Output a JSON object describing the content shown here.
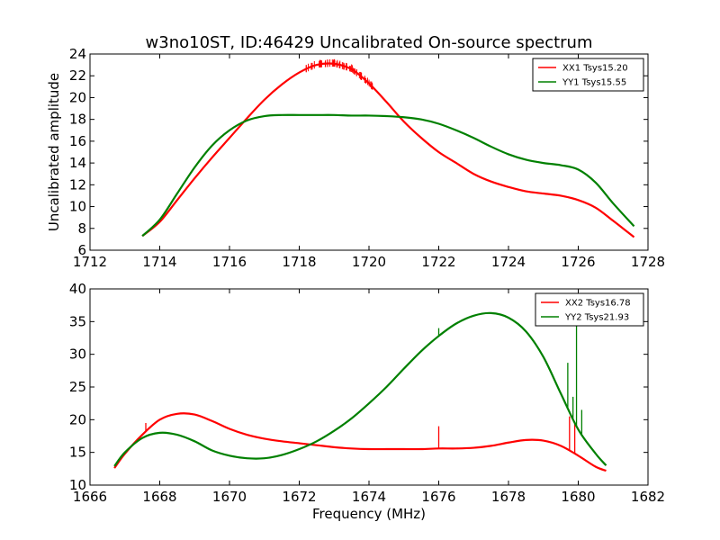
{
  "title": "w3no10ST, ID:46429 Uncalibrated On-source spectrum",
  "chart_data": [
    {
      "type": "line",
      "title": "w3no10ST, ID:46429 Uncalibrated On-source spectrum",
      "xlabel": "",
      "ylabel": "Uncalibrated amplitude",
      "xlim": [
        1712,
        1728
      ],
      "ylim": [
        6,
        24
      ],
      "xticks": [
        "1712",
        "1714",
        "1716",
        "1718",
        "1720",
        "1722",
        "1724",
        "1726",
        "1728"
      ],
      "yticks": [
        "6",
        "8",
        "10",
        "12",
        "14",
        "16",
        "18",
        "20",
        "22",
        "24"
      ],
      "legend_position": "top-right",
      "series": [
        {
          "name": "XX1 Tsys15.20",
          "color": "#ff0000",
          "x": [
            1713.5,
            1714.0,
            1714.5,
            1715.0,
            1715.5,
            1716.0,
            1716.5,
            1717.0,
            1717.5,
            1718.0,
            1718.5,
            1719.0,
            1719.5,
            1720.0,
            1720.5,
            1721.0,
            1721.5,
            1722.0,
            1722.5,
            1723.0,
            1723.5,
            1724.0,
            1724.5,
            1725.0,
            1725.5,
            1726.0,
            1726.5,
            1727.0,
            1727.6
          ],
          "values": [
            7.3,
            8.6,
            10.6,
            12.6,
            14.5,
            16.3,
            18.1,
            19.8,
            21.2,
            22.3,
            23.0,
            23.1,
            22.6,
            21.3,
            19.6,
            17.8,
            16.3,
            15.0,
            14.0,
            13.0,
            12.3,
            11.8,
            11.4,
            11.2,
            11.0,
            10.6,
            9.9,
            8.7,
            7.2
          ]
        },
        {
          "name": "YY1 Tsys15.55",
          "color": "#008000",
          "x": [
            1713.5,
            1714.0,
            1714.5,
            1715.0,
            1715.5,
            1716.0,
            1716.5,
            1717.0,
            1717.5,
            1718.0,
            1718.5,
            1719.0,
            1719.5,
            1720.0,
            1720.5,
            1721.0,
            1721.5,
            1722.0,
            1722.5,
            1723.0,
            1723.5,
            1724.0,
            1724.5,
            1725.0,
            1725.5,
            1726.0,
            1726.5,
            1727.0,
            1727.6
          ],
          "values": [
            7.3,
            8.8,
            11.2,
            13.6,
            15.6,
            17.0,
            17.9,
            18.3,
            18.4,
            18.4,
            18.4,
            18.4,
            18.35,
            18.35,
            18.3,
            18.2,
            18.0,
            17.6,
            17.0,
            16.3,
            15.5,
            14.8,
            14.3,
            14.0,
            13.8,
            13.4,
            12.2,
            10.3,
            8.2
          ]
        }
      ]
    },
    {
      "type": "line",
      "title": "",
      "xlabel": "Frequency (MHz)",
      "ylabel": "",
      "xlim": [
        1666,
        1682
      ],
      "ylim": [
        10,
        40
      ],
      "xticks": [
        "1666",
        "1668",
        "1670",
        "1672",
        "1674",
        "1676",
        "1678",
        "1680",
        "1682"
      ],
      "yticks": [
        "10",
        "15",
        "20",
        "25",
        "30",
        "35",
        "40"
      ],
      "legend_position": "top-right",
      "series": [
        {
          "name": "XX2 Tsys16.78",
          "color": "#ff0000",
          "x": [
            1666.7,
            1667.0,
            1667.5,
            1668.0,
            1668.5,
            1669.0,
            1669.5,
            1670.0,
            1670.5,
            1671.0,
            1671.5,
            1672.0,
            1672.5,
            1673.0,
            1673.5,
            1674.0,
            1674.5,
            1675.0,
            1675.5,
            1676.0,
            1676.5,
            1677.0,
            1677.5,
            1678.0,
            1678.5,
            1679.0,
            1679.5,
            1680.0,
            1680.5,
            1680.8
          ],
          "values": [
            12.6,
            14.8,
            17.7,
            20.0,
            20.9,
            20.8,
            19.8,
            18.6,
            17.7,
            17.1,
            16.7,
            16.4,
            16.1,
            15.8,
            15.6,
            15.5,
            15.5,
            15.5,
            15.5,
            15.6,
            15.6,
            15.7,
            16.0,
            16.5,
            16.9,
            16.8,
            16.0,
            14.5,
            12.8,
            12.2
          ],
          "spikes": [
            {
              "x": 1667.6,
              "y": 19.5
            },
            {
              "x": 1676.0,
              "y": 19.0
            },
            {
              "x": 1679.75,
              "y": 20.5
            },
            {
              "x": 1679.9,
              "y": 19.5
            }
          ]
        },
        {
          "name": "YY2 Tsys21.93",
          "color": "#008000",
          "x": [
            1666.7,
            1667.0,
            1667.5,
            1668.0,
            1668.5,
            1669.0,
            1669.5,
            1670.0,
            1670.5,
            1671.0,
            1671.5,
            1672.0,
            1672.5,
            1673.0,
            1673.5,
            1674.0,
            1674.5,
            1675.0,
            1675.5,
            1676.0,
            1676.5,
            1677.0,
            1677.5,
            1678.0,
            1678.5,
            1679.0,
            1679.5,
            1680.0,
            1680.5,
            1680.8
          ],
          "values": [
            12.9,
            15.0,
            17.2,
            18.0,
            17.7,
            16.7,
            15.3,
            14.5,
            14.1,
            14.1,
            14.6,
            15.5,
            16.7,
            18.3,
            20.2,
            22.5,
            25.0,
            27.8,
            30.5,
            32.8,
            34.7,
            35.9,
            36.3,
            35.6,
            33.5,
            29.6,
            24.0,
            18.5,
            14.8,
            13.0
          ],
          "spikes": [
            {
              "x": 1676.0,
              "y": 34.0
            },
            {
              "x": 1679.7,
              "y": 28.7
            },
            {
              "x": 1679.85,
              "y": 23.5
            },
            {
              "x": 1679.95,
              "y": 35.0
            },
            {
              "x": 1680.1,
              "y": 21.5
            }
          ]
        }
      ]
    }
  ]
}
